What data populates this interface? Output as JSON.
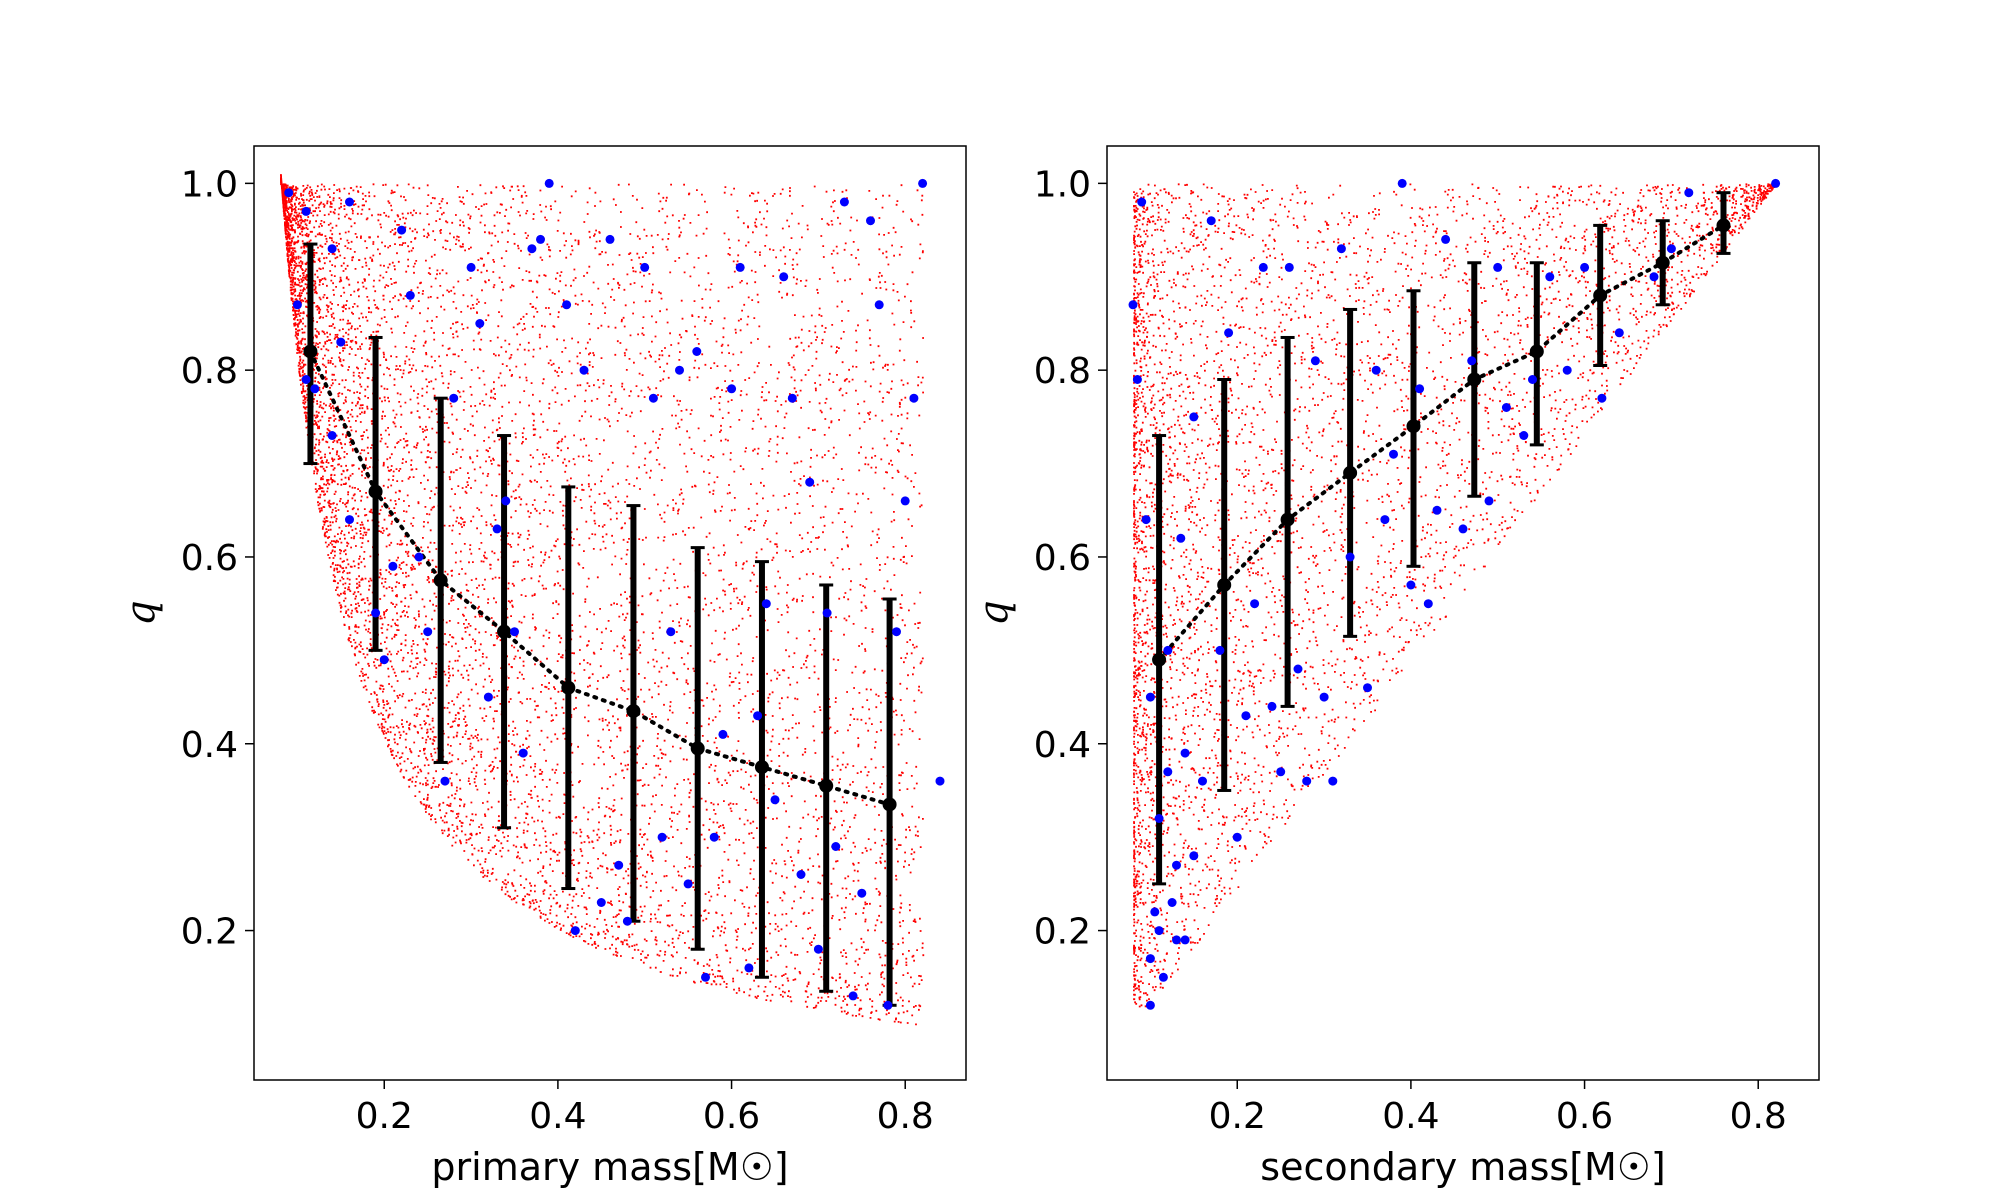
{
  "chart_data": [
    {
      "type": "scatter",
      "panel": "left",
      "xlabel": "primary mass[M☉]",
      "ylabel": "q",
      "xlim": [
        0.05,
        0.87
      ],
      "ylim": [
        0.04,
        1.04
      ],
      "xticks": [
        0.2,
        0.4,
        0.6,
        0.8
      ],
      "xtick_labels": [
        "0.2",
        "0.4",
        "0.6",
        "0.8"
      ],
      "yticks": [
        0.2,
        0.4,
        0.6,
        0.8,
        1.0
      ],
      "ytick_labels": [
        "0.2",
        "0.4",
        "0.6",
        "0.8",
        "1.0"
      ],
      "colors": {
        "simulated": "#ff0000",
        "observed": "#0000ff",
        "binned": "#000000"
      },
      "simulated_region": {
        "description_shape": "q >= 0.08 / m1",
        "m_min": 0.08,
        "m_max": 0.82,
        "q_max": 1.0
      },
      "binned": {
        "x": [
          0.115,
          0.19,
          0.265,
          0.338,
          0.412,
          0.487,
          0.561,
          0.635,
          0.709,
          0.782
        ],
        "y": [
          0.82,
          0.67,
          0.575,
          0.52,
          0.46,
          0.435,
          0.395,
          0.375,
          0.355,
          0.335
        ],
        "yerr_low": [
          0.7,
          0.5,
          0.38,
          0.31,
          0.245,
          0.21,
          0.18,
          0.15,
          0.135,
          0.12
        ],
        "yerr_high": [
          0.935,
          0.835,
          0.77,
          0.73,
          0.675,
          0.655,
          0.61,
          0.595,
          0.57,
          0.555
        ]
      },
      "observed": [
        [
          0.09,
          0.99
        ],
        [
          0.1,
          0.87
        ],
        [
          0.11,
          0.97
        ],
        [
          0.11,
          0.79
        ],
        [
          0.12,
          0.78
        ],
        [
          0.14,
          0.73
        ],
        [
          0.15,
          0.83
        ],
        [
          0.16,
          0.64
        ],
        [
          0.14,
          0.93
        ],
        [
          0.16,
          0.98
        ],
        [
          0.19,
          0.54
        ],
        [
          0.2,
          0.49
        ],
        [
          0.21,
          0.59
        ],
        [
          0.22,
          0.95
        ],
        [
          0.23,
          0.88
        ],
        [
          0.24,
          0.6
        ],
        [
          0.25,
          0.52
        ],
        [
          0.27,
          0.36
        ],
        [
          0.28,
          0.77
        ],
        [
          0.3,
          0.91
        ],
        [
          0.31,
          0.85
        ],
        [
          0.32,
          0.45
        ],
        [
          0.33,
          0.63
        ],
        [
          0.34,
          0.66
        ],
        [
          0.35,
          0.52
        ],
        [
          0.36,
          0.39
        ],
        [
          0.37,
          0.93
        ],
        [
          0.38,
          0.94
        ],
        [
          0.39,
          1.0
        ],
        [
          0.41,
          0.87
        ],
        [
          0.42,
          0.2
        ],
        [
          0.43,
          0.8
        ],
        [
          0.45,
          0.23
        ],
        [
          0.46,
          0.94
        ],
        [
          0.47,
          0.27
        ],
        [
          0.48,
          0.21
        ],
        [
          0.5,
          0.91
        ],
        [
          0.51,
          0.77
        ],
        [
          0.52,
          0.3
        ],
        [
          0.53,
          0.52
        ],
        [
          0.54,
          0.8
        ],
        [
          0.55,
          0.25
        ],
        [
          0.56,
          0.82
        ],
        [
          0.57,
          0.15
        ],
        [
          0.58,
          0.3
        ],
        [
          0.59,
          0.41
        ],
        [
          0.6,
          0.78
        ],
        [
          0.61,
          0.91
        ],
        [
          0.62,
          0.16
        ],
        [
          0.63,
          0.43
        ],
        [
          0.64,
          0.55
        ],
        [
          0.65,
          0.34
        ],
        [
          0.66,
          0.9
        ],
        [
          0.67,
          0.77
        ],
        [
          0.68,
          0.26
        ],
        [
          0.69,
          0.68
        ],
        [
          0.7,
          0.18
        ],
        [
          0.71,
          0.54
        ],
        [
          0.72,
          0.29
        ],
        [
          0.73,
          0.98
        ],
        [
          0.74,
          0.13
        ],
        [
          0.75,
          0.24
        ],
        [
          0.76,
          0.96
        ],
        [
          0.77,
          0.87
        ],
        [
          0.78,
          0.12
        ],
        [
          0.79,
          0.52
        ],
        [
          0.8,
          0.66
        ],
        [
          0.81,
          0.77
        ],
        [
          0.82,
          1.0
        ],
        [
          0.84,
          0.36
        ]
      ]
    },
    {
      "type": "scatter",
      "panel": "right",
      "xlabel": "secondary mass[M☉]",
      "ylabel": "q",
      "xlim": [
        0.05,
        0.87
      ],
      "ylim": [
        0.04,
        1.04
      ],
      "xticks": [
        0.2,
        0.4,
        0.6,
        0.8
      ],
      "xtick_labels": [
        "0.2",
        "0.4",
        "0.6",
        "0.8"
      ],
      "yticks": [
        0.2,
        0.4,
        0.6,
        0.8,
        1.0
      ],
      "ytick_labels": [
        "0.2",
        "0.4",
        "0.6",
        "0.8",
        "1.0"
      ],
      "colors": {
        "simulated": "#ff0000",
        "observed": "#0000ff",
        "binned": "#000000"
      },
      "simulated_region": {
        "description_shape": "q >= m2 / 0.82",
        "m_min": 0.08,
        "m_max": 0.82,
        "q_max": 1.0
      },
      "binned": {
        "x": [
          0.11,
          0.185,
          0.258,
          0.33,
          0.403,
          0.473,
          0.545,
          0.618,
          0.69,
          0.76
        ],
        "y": [
          0.49,
          0.57,
          0.64,
          0.69,
          0.74,
          0.79,
          0.82,
          0.88,
          0.915,
          0.955
        ],
        "yerr_low": [
          0.25,
          0.35,
          0.44,
          0.515,
          0.59,
          0.665,
          0.72,
          0.805,
          0.87,
          0.925
        ],
        "yerr_high": [
          0.73,
          0.79,
          0.835,
          0.865,
          0.885,
          0.915,
          0.915,
          0.955,
          0.96,
          0.99
        ]
      },
      "observed": [
        [
          0.08,
          0.87
        ],
        [
          0.085,
          0.79
        ],
        [
          0.09,
          0.98
        ],
        [
          0.095,
          0.64
        ],
        [
          0.1,
          0.45
        ],
        [
          0.1,
          0.17
        ],
        [
          0.1,
          0.12
        ],
        [
          0.105,
          0.22
        ],
        [
          0.11,
          0.2
        ],
        [
          0.11,
          0.32
        ],
        [
          0.115,
          0.15
        ],
        [
          0.12,
          0.37
        ],
        [
          0.12,
          0.5
        ],
        [
          0.125,
          0.23
        ],
        [
          0.13,
          0.19
        ],
        [
          0.13,
          0.27
        ],
        [
          0.135,
          0.62
        ],
        [
          0.14,
          0.39
        ],
        [
          0.14,
          0.19
        ],
        [
          0.15,
          0.75
        ],
        [
          0.15,
          0.28
        ],
        [
          0.16,
          0.36
        ],
        [
          0.17,
          0.96
        ],
        [
          0.18,
          0.5
        ],
        [
          0.19,
          0.84
        ],
        [
          0.2,
          0.3
        ],
        [
          0.21,
          0.43
        ],
        [
          0.22,
          0.55
        ],
        [
          0.23,
          0.91
        ],
        [
          0.24,
          0.44
        ],
        [
          0.25,
          0.37
        ],
        [
          0.26,
          0.91
        ],
        [
          0.27,
          0.48
        ],
        [
          0.28,
          0.36
        ],
        [
          0.29,
          0.81
        ],
        [
          0.3,
          0.45
        ],
        [
          0.31,
          0.36
        ],
        [
          0.32,
          0.93
        ],
        [
          0.33,
          0.6
        ],
        [
          0.35,
          0.46
        ],
        [
          0.36,
          0.8
        ],
        [
          0.37,
          0.64
        ],
        [
          0.38,
          0.71
        ],
        [
          0.39,
          1.0
        ],
        [
          0.4,
          0.57
        ],
        [
          0.41,
          0.78
        ],
        [
          0.42,
          0.55
        ],
        [
          0.43,
          0.65
        ],
        [
          0.44,
          0.94
        ],
        [
          0.46,
          0.63
        ],
        [
          0.47,
          0.81
        ],
        [
          0.49,
          0.66
        ],
        [
          0.5,
          0.91
        ],
        [
          0.51,
          0.76
        ],
        [
          0.53,
          0.73
        ],
        [
          0.54,
          0.79
        ],
        [
          0.56,
          0.9
        ],
        [
          0.58,
          0.8
        ],
        [
          0.6,
          0.91
        ],
        [
          0.62,
          0.77
        ],
        [
          0.64,
          0.84
        ],
        [
          0.68,
          0.9
        ],
        [
          0.7,
          0.93
        ],
        [
          0.72,
          0.99
        ],
        [
          0.82,
          1.0
        ]
      ]
    }
  ]
}
